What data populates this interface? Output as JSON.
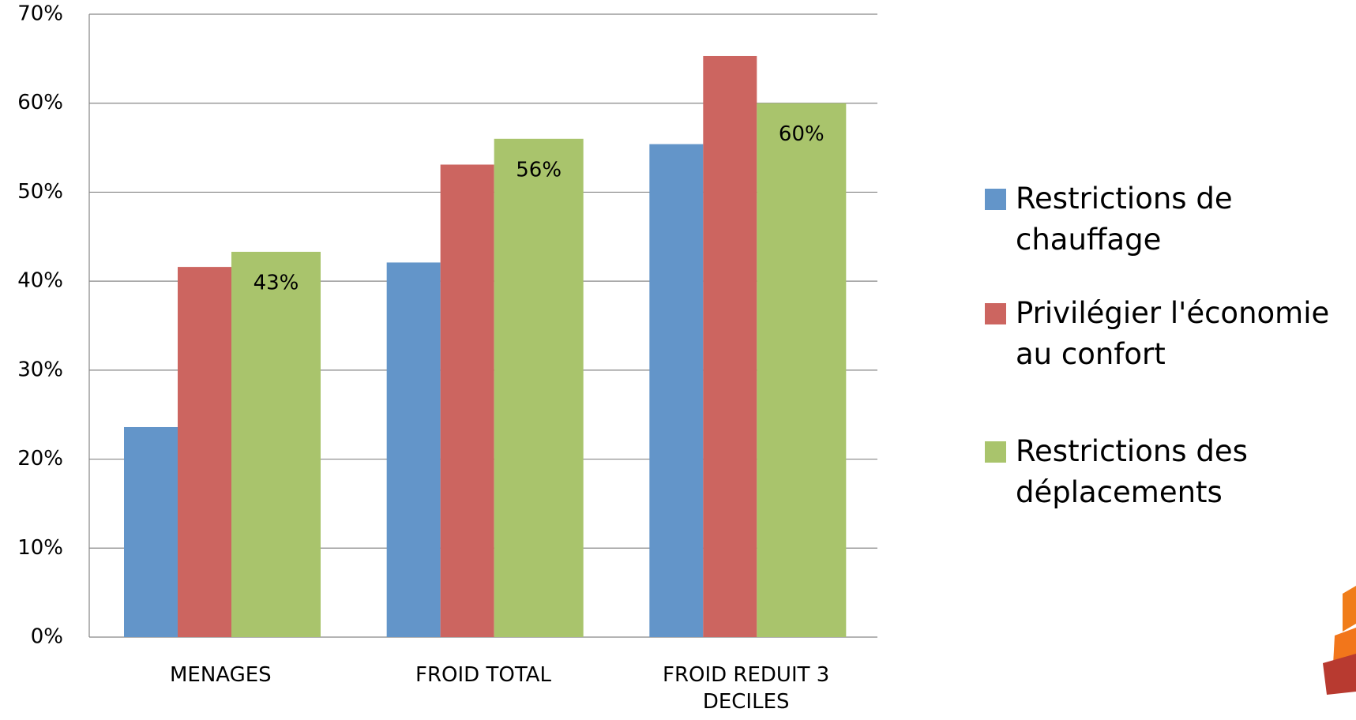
{
  "chart_data": {
    "type": "bar",
    "categories": [
      "MENAGES",
      "FROID TOTAL",
      "FROID REDUIT 3 DECILES"
    ],
    "series": [
      {
        "name": "Restrictions de chauffage",
        "color": "#6395c9",
        "values": [
          23.6,
          42.1,
          55.4
        ]
      },
      {
        "name": "Privilégier l'économie au confort",
        "color": "#cc6560",
        "values": [
          41.6,
          53.1,
          65.3
        ]
      },
      {
        "name": "Restrictions des déplacements",
        "color": "#a9c46c",
        "values": [
          43.3,
          56,
          60
        ],
        "value_labels": [
          "43%",
          "56%",
          "60%"
        ]
      }
    ],
    "ylim": [
      0,
      70
    ],
    "yticks": [
      {
        "value": 0,
        "label": "0%"
      },
      {
        "value": 10,
        "label": "10%"
      },
      {
        "value": 20,
        "label": "20%"
      },
      {
        "value": 30,
        "label": "30%"
      },
      {
        "value": 40,
        "label": "40%"
      },
      {
        "value": 50,
        "label": "50%"
      },
      {
        "value": 60,
        "label": "60%"
      },
      {
        "value": 70,
        "label": "70%"
      }
    ],
    "grid": true,
    "legend": "right"
  }
}
